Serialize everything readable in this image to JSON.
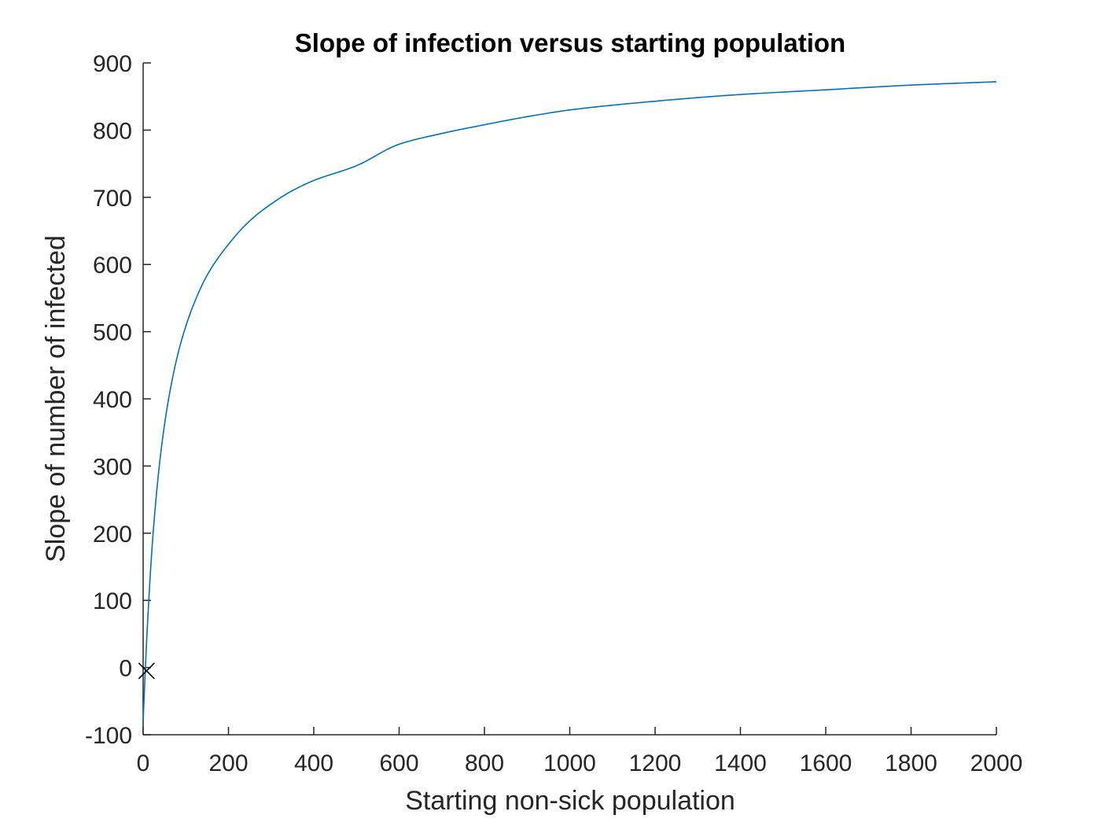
{
  "chart_data": {
    "type": "line",
    "title": "Slope of infection versus starting population",
    "xlabel": "Starting non-sick population",
    "ylabel": "Slope of number of infected",
    "xlim": [
      0,
      2000
    ],
    "ylim": [
      -100,
      900
    ],
    "xticks": [
      0,
      200,
      400,
      600,
      800,
      1000,
      1200,
      1400,
      1600,
      1800,
      2000
    ],
    "yticks": [
      -100,
      0,
      100,
      200,
      300,
      400,
      500,
      600,
      700,
      800,
      900
    ],
    "xtick_labels": [
      "0",
      "200",
      "400",
      "600",
      "800",
      "1000",
      "1200",
      "1400",
      "1600",
      "1800",
      "2000"
    ],
    "ytick_labels": [
      "-100",
      "0",
      "100",
      "200",
      "300",
      "400",
      "500",
      "600",
      "700",
      "800",
      "900"
    ],
    "grid": false,
    "series": [
      {
        "color": "#0072BD",
        "x": [
          0,
          5,
          10,
          20,
          30,
          40,
          50,
          60,
          80,
          100,
          120,
          150,
          200,
          250,
          300,
          350,
          400,
          500,
          600,
          700,
          800,
          900,
          1000,
          1200,
          1400,
          1600,
          1800,
          2000
        ],
        "y": [
          -80,
          -5,
          62,
          170,
          250,
          312,
          361,
          401,
          463,
          508,
          543,
          584,
          630,
          665,
          690,
          710,
          725,
          747,
          779,
          795,
          808,
          820,
          830,
          843,
          853,
          860,
          867,
          872
        ]
      }
    ],
    "markers": [
      {
        "x": 8,
        "y": -5,
        "symbol": "x",
        "color": "#000000"
      }
    ]
  }
}
